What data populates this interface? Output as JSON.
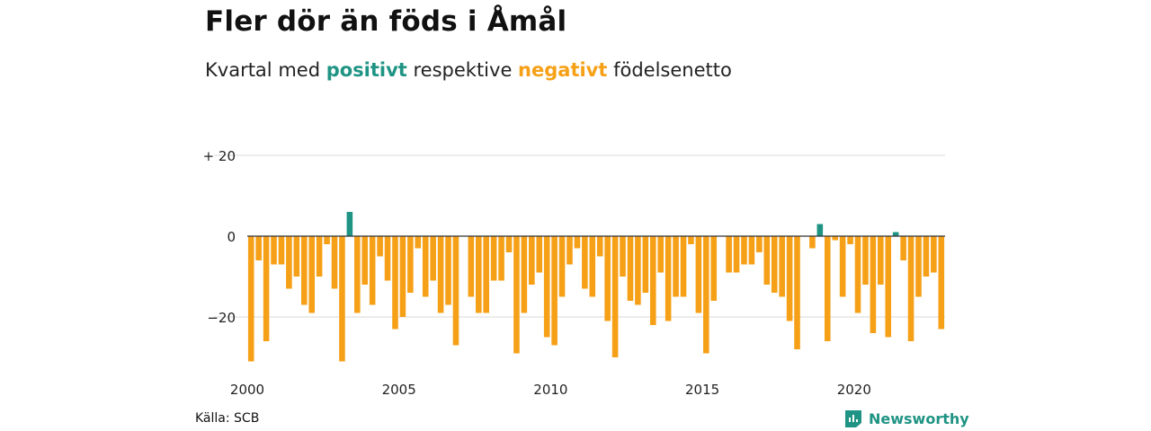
{
  "header": {
    "title": "Fler dör än föds i Åmål",
    "subtitle_prefix": "Kvartal med ",
    "subtitle_pos": "positivt",
    "subtitle_mid": " respektive ",
    "subtitle_neg": "negativt",
    "subtitle_suffix": " födelsenetto"
  },
  "footer": {
    "source": "Källa: SCB",
    "brand": "Newsworthy"
  },
  "colors": {
    "positive": "#1f9484",
    "negative": "#f6a017",
    "grid": "#d9d9d9",
    "axis": "#333333"
  },
  "chart_data": {
    "type": "bar",
    "title": "Fler dör än föds i Åmål",
    "subtitle": "Kvartal med positivt respektive negativt födelsenetto",
    "xlabel": "",
    "ylabel": "",
    "x_range": [
      "2000-Q1",
      "2023-Q1"
    ],
    "ylim": [
      -33,
      22
    ],
    "y_ticks": [
      20,
      0,
      -20
    ],
    "y_tick_labels": [
      "+ 20",
      "0",
      "−20"
    ],
    "x_ticks": [
      2000,
      2005,
      2010,
      2015,
      2020
    ],
    "x_tick_labels": [
      "2000",
      "2005",
      "2010",
      "2015",
      "2020"
    ],
    "grid": true,
    "legend": "none",
    "values": [
      -31,
      -6,
      -26,
      -7,
      -7,
      -13,
      -10,
      -17,
      -19,
      -10,
      -2,
      -13,
      -31,
      6,
      -19,
      -12,
      -17,
      -5,
      -11,
      -23,
      -20,
      -14,
      -3,
      -15,
      -11,
      -19,
      -17,
      -27,
      0,
      -15,
      -19,
      -19,
      -11,
      -11,
      -4,
      -29,
      -19,
      -12,
      -9,
      -25,
      -27,
      -15,
      -7,
      -3,
      -13,
      -15,
      -5,
      -21,
      -30,
      -10,
      -16,
      -17,
      -14,
      -22,
      -9,
      -21,
      -15,
      -15,
      -2,
      -19,
      -29,
      -16,
      0,
      -9,
      -9,
      -7,
      -7,
      -4,
      -12,
      -14,
      -15,
      -21,
      -28,
      0,
      -3,
      3,
      -26,
      -1,
      -15,
      -2,
      -19,
      -12,
      -24,
      -12,
      -25,
      1,
      -6,
      -26,
      -15,
      -10,
      -9,
      -23
    ]
  }
}
